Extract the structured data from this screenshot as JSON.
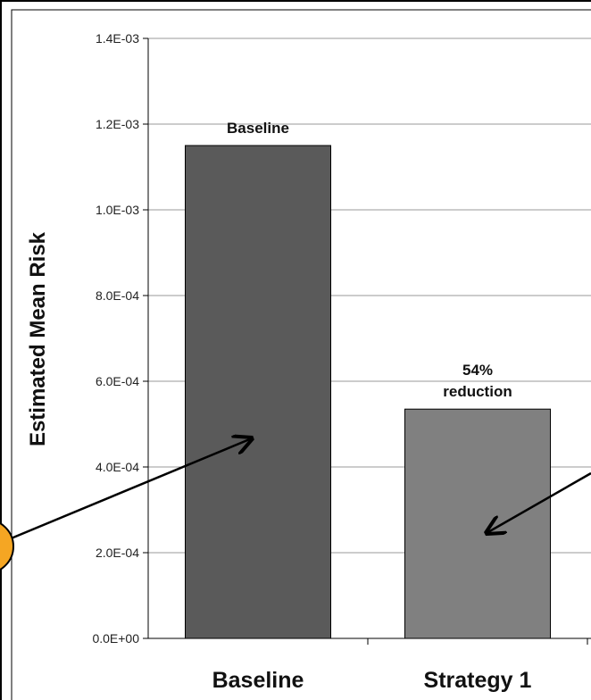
{
  "chart_data": {
    "type": "bar",
    "title": "",
    "xlabel": "",
    "ylabel": "Estimated Mean Risk",
    "categories": [
      "Baseline",
      "Strategy 1"
    ],
    "values": [
      0.00115,
      0.000535
    ],
    "ylim": [
      0,
      0.0014
    ],
    "yticks": [
      "0.0E+00",
      "2.0E-04",
      "4.0E-04",
      "6.0E-04",
      "8.0E-04",
      "1.0E-03",
      "1.2E-03",
      "1.4E-03"
    ],
    "bar_annotations": [
      "Baseline",
      "54%|reduction"
    ],
    "grid": true,
    "colors": {
      "bar_baseline": "#5a5a5a",
      "bar_strategy": "#808080",
      "marker_fill": "#f5a623"
    }
  }
}
